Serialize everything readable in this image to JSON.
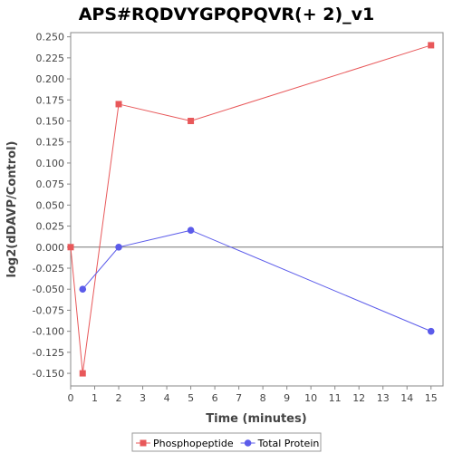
{
  "chart_data": {
    "type": "line",
    "title": "APS#RQDVYGPQPQVR(+ 2)_v1",
    "xlabel": "Time (minutes)",
    "ylabel": "log2(dDAVP/Control)",
    "xlim": [
      0,
      15.5
    ],
    "ylim": [
      -0.165,
      0.255
    ],
    "x_ticks": [
      "0",
      "1",
      "2",
      "3",
      "4",
      "5",
      "6",
      "7",
      "8",
      "9",
      "10",
      "11",
      "12",
      "13",
      "14",
      "15"
    ],
    "y_ticks": [
      "-0.150",
      "-0.125",
      "-0.100",
      "-0.075",
      "-0.050",
      "-0.025",
      "0.000",
      "0.025",
      "0.050",
      "0.075",
      "0.100",
      "0.125",
      "0.150",
      "0.175",
      "0.200",
      "0.225",
      "0.250"
    ],
    "zero_line": true,
    "grid": false,
    "legend_position": "bottom",
    "series": [
      {
        "name": "Phosphopeptide",
        "color": "#e8585a",
        "marker": "square",
        "x": [
          0,
          0.5,
          2,
          5,
          15
        ],
        "y": [
          0.0,
          -0.15,
          0.17,
          0.15,
          0.24
        ]
      },
      {
        "name": "Total Protein",
        "color": "#5b5bea",
        "marker": "circle",
        "x": [
          0.5,
          2,
          5,
          15
        ],
        "y": [
          -0.05,
          0.0,
          0.02,
          -0.1
        ]
      }
    ]
  }
}
